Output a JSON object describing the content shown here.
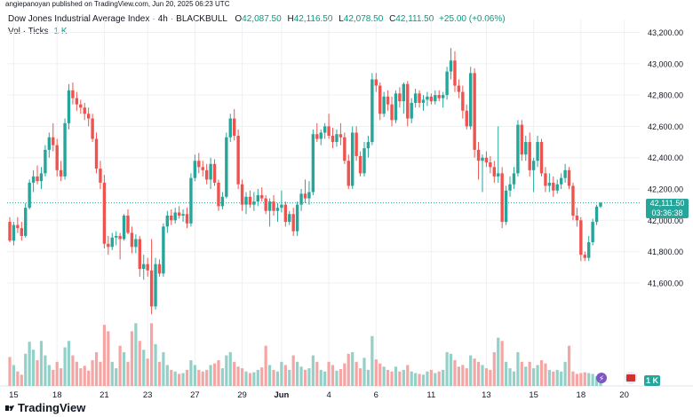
{
  "publisher_line": "angiepanoyan published on TradingView.com, Jun 20, 2025 06:23 UTC",
  "legend": {
    "symbol": "Dow Jones Industrial Average Index",
    "interval": "4h",
    "source": "BLACKBULL",
    "o_label": "O",
    "o_value": "42,087.50",
    "h_label": "H",
    "h_value": "42,116.50",
    "l_label": "L",
    "l_value": "42,078.50",
    "c_label": "C",
    "c_value": "42,111.50",
    "change": "+25.00 (+0.06%)",
    "vol_label": "Vol · Ticks",
    "vol_value": "1 K"
  },
  "last_price_tag": {
    "price": "42,111.50",
    "countdown": "03:36:38"
  },
  "volume_tag": "1 K",
  "brand": "TradingView",
  "colors": {
    "up": "#26a69a",
    "down": "#ef5350",
    "up_vol": "#93d0c8",
    "down_vol": "#f5a6a4",
    "grid": "#eef0f3",
    "axis_text": "#131722",
    "last_line": "#26a69a"
  },
  "chart_data": {
    "type": "candlestick",
    "y_axis": {
      "min": 41500,
      "max": 43300,
      "ticks": [
        41600,
        41800,
        42000,
        42200,
        42400,
        42600,
        42800,
        43000,
        43200
      ],
      "tick_labels": [
        "41,600.00",
        "41,800.00",
        "42,000.00",
        "42,200.00",
        "42,400.00",
        "42,600.00",
        "42,800.00",
        "43,000.00",
        "43,200.00"
      ]
    },
    "x_axis": {
      "labels": [
        "15",
        "18",
        "21",
        "23",
        "27",
        "29",
        "Jun",
        "4",
        "6",
        "11",
        "13",
        "15",
        "18",
        "20"
      ],
      "label_candle_index": [
        1,
        12,
        24,
        35,
        47,
        59,
        69,
        81,
        93,
        107,
        121,
        133,
        145,
        156
      ]
    },
    "last_price": 42111.5,
    "volume_scale_max": 1600,
    "candles": [
      {
        "o": 41990,
        "h": 42020,
        "l": 41860,
        "c": 41870,
        "v": 360
      },
      {
        "o": 41870,
        "h": 41990,
        "l": 41840,
        "c": 41970,
        "v": 260
      },
      {
        "o": 41970,
        "h": 42020,
        "l": 41920,
        "c": 41950,
        "v": 180
      },
      {
        "o": 41950,
        "h": 41990,
        "l": 41870,
        "c": 41900,
        "v": 140
      },
      {
        "o": 41900,
        "h": 42110,
        "l": 41890,
        "c": 42080,
        "v": 400
      },
      {
        "o": 42080,
        "h": 42260,
        "l": 42070,
        "c": 42240,
        "v": 550
      },
      {
        "o": 42240,
        "h": 42320,
        "l": 42180,
        "c": 42280,
        "v": 450
      },
      {
        "o": 42280,
        "h": 42350,
        "l": 42230,
        "c": 42250,
        "v": 320
      },
      {
        "o": 42250,
        "h": 42340,
        "l": 42200,
        "c": 42300,
        "v": 560
      },
      {
        "o": 42300,
        "h": 42480,
        "l": 42280,
        "c": 42450,
        "v": 380
      },
      {
        "o": 42450,
        "h": 42560,
        "l": 42400,
        "c": 42530,
        "v": 260
      },
      {
        "o": 42530,
        "h": 42620,
        "l": 42440,
        "c": 42480,
        "v": 200
      },
      {
        "o": 42480,
        "h": 42520,
        "l": 42280,
        "c": 42320,
        "v": 300
      },
      {
        "o": 42320,
        "h": 42380,
        "l": 42250,
        "c": 42280,
        "v": 220
      },
      {
        "o": 42280,
        "h": 42650,
        "l": 42260,
        "c": 42620,
        "v": 480
      },
      {
        "o": 42620,
        "h": 42870,
        "l": 42580,
        "c": 42830,
        "v": 560
      },
      {
        "o": 42830,
        "h": 42880,
        "l": 42740,
        "c": 42780,
        "v": 380
      },
      {
        "o": 42780,
        "h": 42820,
        "l": 42700,
        "c": 42740,
        "v": 300
      },
      {
        "o": 42740,
        "h": 42770,
        "l": 42680,
        "c": 42720,
        "v": 220
      },
      {
        "o": 42720,
        "h": 42750,
        "l": 42640,
        "c": 42680,
        "v": 250
      },
      {
        "o": 42680,
        "h": 42720,
        "l": 42600,
        "c": 42650,
        "v": 190
      },
      {
        "o": 42650,
        "h": 42680,
        "l": 42500,
        "c": 42520,
        "v": 320
      },
      {
        "o": 42520,
        "h": 42560,
        "l": 42300,
        "c": 42330,
        "v": 420
      },
      {
        "o": 42330,
        "h": 42380,
        "l": 42200,
        "c": 42240,
        "v": 300
      },
      {
        "o": 42240,
        "h": 42290,
        "l": 41820,
        "c": 41850,
        "v": 760
      },
      {
        "o": 41850,
        "h": 41900,
        "l": 41780,
        "c": 41830,
        "v": 680
      },
      {
        "o": 41830,
        "h": 41920,
        "l": 41810,
        "c": 41890,
        "v": 300
      },
      {
        "o": 41890,
        "h": 41930,
        "l": 41840,
        "c": 41900,
        "v": 220
      },
      {
        "o": 41900,
        "h": 41920,
        "l": 41750,
        "c": 41880,
        "v": 500
      },
      {
        "o": 41880,
        "h": 42040,
        "l": 41870,
        "c": 42030,
        "v": 420
      },
      {
        "o": 42030,
        "h": 42070,
        "l": 41910,
        "c": 41920,
        "v": 300
      },
      {
        "o": 41920,
        "h": 41960,
        "l": 41790,
        "c": 41830,
        "v": 680
      },
      {
        "o": 41830,
        "h": 41910,
        "l": 41790,
        "c": 41880,
        "v": 780
      },
      {
        "o": 41880,
        "h": 41900,
        "l": 41640,
        "c": 41690,
        "v": 560
      },
      {
        "o": 41690,
        "h": 41780,
        "l": 41620,
        "c": 41720,
        "v": 450
      },
      {
        "o": 41720,
        "h": 41760,
        "l": 41640,
        "c": 41680,
        "v": 340
      },
      {
        "o": 41680,
        "h": 41880,
        "l": 41400,
        "c": 41450,
        "v": 780
      },
      {
        "o": 41450,
        "h": 41760,
        "l": 41430,
        "c": 41720,
        "v": 520
      },
      {
        "o": 41720,
        "h": 41750,
        "l": 41640,
        "c": 41660,
        "v": 300
      },
      {
        "o": 41660,
        "h": 41980,
        "l": 41640,
        "c": 41960,
        "v": 420
      },
      {
        "o": 41960,
        "h": 42060,
        "l": 41920,
        "c": 42030,
        "v": 260
      },
      {
        "o": 42030,
        "h": 42070,
        "l": 41970,
        "c": 42000,
        "v": 200
      },
      {
        "o": 42000,
        "h": 42080,
        "l": 41980,
        "c": 42050,
        "v": 180
      },
      {
        "o": 42050,
        "h": 42090,
        "l": 42010,
        "c": 42030,
        "v": 150
      },
      {
        "o": 42030,
        "h": 42070,
        "l": 41990,
        "c": 42040,
        "v": 160
      },
      {
        "o": 42040,
        "h": 42080,
        "l": 41950,
        "c": 41980,
        "v": 200
      },
      {
        "o": 41980,
        "h": 42300,
        "l": 41960,
        "c": 42270,
        "v": 320
      },
      {
        "o": 42270,
        "h": 42420,
        "l": 42250,
        "c": 42380,
        "v": 260
      },
      {
        "o": 42380,
        "h": 42430,
        "l": 42300,
        "c": 42340,
        "v": 200
      },
      {
        "o": 42340,
        "h": 42380,
        "l": 42280,
        "c": 42320,
        "v": 180
      },
      {
        "o": 42320,
        "h": 42360,
        "l": 42230,
        "c": 42260,
        "v": 200
      },
      {
        "o": 42260,
        "h": 42400,
        "l": 42200,
        "c": 42360,
        "v": 260
      },
      {
        "o": 42360,
        "h": 42390,
        "l": 42220,
        "c": 42240,
        "v": 280
      },
      {
        "o": 42240,
        "h": 42260,
        "l": 42060,
        "c": 42090,
        "v": 320
      },
      {
        "o": 42090,
        "h": 42180,
        "l": 42070,
        "c": 42150,
        "v": 220
      },
      {
        "o": 42150,
        "h": 42560,
        "l": 42140,
        "c": 42530,
        "v": 380
      },
      {
        "o": 42530,
        "h": 42680,
        "l": 42500,
        "c": 42650,
        "v": 420
      },
      {
        "o": 42650,
        "h": 42710,
        "l": 42510,
        "c": 42540,
        "v": 300
      },
      {
        "o": 42540,
        "h": 42580,
        "l": 42200,
        "c": 42230,
        "v": 240
      },
      {
        "o": 42230,
        "h": 42260,
        "l": 42060,
        "c": 42100,
        "v": 220
      },
      {
        "o": 42100,
        "h": 42180,
        "l": 42040,
        "c": 42150,
        "v": 180
      },
      {
        "o": 42150,
        "h": 42190,
        "l": 42080,
        "c": 42100,
        "v": 160
      },
      {
        "o": 42100,
        "h": 42180,
        "l": 42060,
        "c": 42120,
        "v": 170
      },
      {
        "o": 42120,
        "h": 42200,
        "l": 42090,
        "c": 42160,
        "v": 200
      },
      {
        "o": 42160,
        "h": 42210,
        "l": 42120,
        "c": 42140,
        "v": 230
      },
      {
        "o": 42140,
        "h": 42160,
        "l": 42040,
        "c": 42060,
        "v": 500
      },
      {
        "o": 42060,
        "h": 42140,
        "l": 41960,
        "c": 42120,
        "v": 260
      },
      {
        "o": 42120,
        "h": 42160,
        "l": 42030,
        "c": 42060,
        "v": 200
      },
      {
        "o": 42060,
        "h": 42110,
        "l": 41990,
        "c": 42080,
        "v": 180
      },
      {
        "o": 42080,
        "h": 42190,
        "l": 42050,
        "c": 42100,
        "v": 300
      },
      {
        "o": 42100,
        "h": 42120,
        "l": 41960,
        "c": 41990,
        "v": 260
      },
      {
        "o": 41990,
        "h": 42060,
        "l": 41970,
        "c": 42040,
        "v": 200
      },
      {
        "o": 42040,
        "h": 42080,
        "l": 41900,
        "c": 41930,
        "v": 380
      },
      {
        "o": 41930,
        "h": 42120,
        "l": 41900,
        "c": 42100,
        "v": 300
      },
      {
        "o": 42100,
        "h": 42200,
        "l": 42060,
        "c": 42170,
        "v": 240
      },
      {
        "o": 42170,
        "h": 42260,
        "l": 42110,
        "c": 42140,
        "v": 200
      },
      {
        "o": 42140,
        "h": 42250,
        "l": 42100,
        "c": 42180,
        "v": 220
      },
      {
        "o": 42180,
        "h": 42580,
        "l": 42160,
        "c": 42550,
        "v": 380
      },
      {
        "o": 42550,
        "h": 42620,
        "l": 42500,
        "c": 42520,
        "v": 300
      },
      {
        "o": 42520,
        "h": 42580,
        "l": 42480,
        "c": 42560,
        "v": 200
      },
      {
        "o": 42560,
        "h": 42620,
        "l": 42520,
        "c": 42600,
        "v": 180
      },
      {
        "o": 42600,
        "h": 42680,
        "l": 42520,
        "c": 42540,
        "v": 300
      },
      {
        "o": 42540,
        "h": 42590,
        "l": 42460,
        "c": 42500,
        "v": 260
      },
      {
        "o": 42500,
        "h": 42580,
        "l": 42470,
        "c": 42550,
        "v": 190
      },
      {
        "o": 42550,
        "h": 42620,
        "l": 42480,
        "c": 42530,
        "v": 210
      },
      {
        "o": 42530,
        "h": 42560,
        "l": 42360,
        "c": 42380,
        "v": 280
      },
      {
        "o": 42380,
        "h": 42420,
        "l": 42200,
        "c": 42220,
        "v": 400
      },
      {
        "o": 42220,
        "h": 42600,
        "l": 42200,
        "c": 42560,
        "v": 420
      },
      {
        "o": 42560,
        "h": 42600,
        "l": 42380,
        "c": 42410,
        "v": 300
      },
      {
        "o": 42410,
        "h": 42440,
        "l": 42280,
        "c": 42300,
        "v": 220
      },
      {
        "o": 42300,
        "h": 42500,
        "l": 42280,
        "c": 42460,
        "v": 350
      },
      {
        "o": 42460,
        "h": 42540,
        "l": 42400,
        "c": 42500,
        "v": 200
      },
      {
        "o": 42500,
        "h": 42940,
        "l": 42480,
        "c": 42900,
        "v": 620
      },
      {
        "o": 42900,
        "h": 42940,
        "l": 42820,
        "c": 42860,
        "v": 330
      },
      {
        "o": 42860,
        "h": 42880,
        "l": 42640,
        "c": 42680,
        "v": 280
      },
      {
        "o": 42680,
        "h": 42820,
        "l": 42660,
        "c": 42790,
        "v": 240
      },
      {
        "o": 42790,
        "h": 42830,
        "l": 42700,
        "c": 42740,
        "v": 200
      },
      {
        "o": 42740,
        "h": 42790,
        "l": 42600,
        "c": 42640,
        "v": 180
      },
      {
        "o": 42640,
        "h": 42830,
        "l": 42620,
        "c": 42810,
        "v": 240
      },
      {
        "o": 42810,
        "h": 42850,
        "l": 42720,
        "c": 42760,
        "v": 180
      },
      {
        "o": 42760,
        "h": 42880,
        "l": 42680,
        "c": 42870,
        "v": 200
      },
      {
        "o": 42870,
        "h": 42890,
        "l": 42600,
        "c": 42650,
        "v": 260
      },
      {
        "o": 42650,
        "h": 42780,
        "l": 42620,
        "c": 42750,
        "v": 180
      },
      {
        "o": 42750,
        "h": 42840,
        "l": 42720,
        "c": 42810,
        "v": 160
      },
      {
        "o": 42810,
        "h": 42830,
        "l": 42720,
        "c": 42750,
        "v": 150
      },
      {
        "o": 42750,
        "h": 42800,
        "l": 42700,
        "c": 42770,
        "v": 140
      },
      {
        "o": 42770,
        "h": 42820,
        "l": 42730,
        "c": 42790,
        "v": 180
      },
      {
        "o": 42790,
        "h": 42810,
        "l": 42740,
        "c": 42760,
        "v": 200
      },
      {
        "o": 42760,
        "h": 42830,
        "l": 42740,
        "c": 42800,
        "v": 160
      },
      {
        "o": 42800,
        "h": 42830,
        "l": 42760,
        "c": 42780,
        "v": 180
      },
      {
        "o": 42780,
        "h": 42820,
        "l": 42720,
        "c": 42800,
        "v": 200
      },
      {
        "o": 42800,
        "h": 42980,
        "l": 42770,
        "c": 42950,
        "v": 420
      },
      {
        "o": 42950,
        "h": 43100,
        "l": 42900,
        "c": 43020,
        "v": 400
      },
      {
        "o": 43020,
        "h": 43080,
        "l": 42820,
        "c": 42860,
        "v": 320
      },
      {
        "o": 42860,
        "h": 42900,
        "l": 42780,
        "c": 42820,
        "v": 240
      },
      {
        "o": 42820,
        "h": 42860,
        "l": 42650,
        "c": 42700,
        "v": 260
      },
      {
        "o": 42700,
        "h": 42740,
        "l": 42580,
        "c": 42600,
        "v": 220
      },
      {
        "o": 42600,
        "h": 42980,
        "l": 42580,
        "c": 42940,
        "v": 380
      },
      {
        "o": 42940,
        "h": 42970,
        "l": 42400,
        "c": 42450,
        "v": 340
      },
      {
        "o": 42450,
        "h": 42500,
        "l": 42260,
        "c": 42380,
        "v": 300
      },
      {
        "o": 42380,
        "h": 42420,
        "l": 42180,
        "c": 42400,
        "v": 260
      },
      {
        "o": 42400,
        "h": 42440,
        "l": 42340,
        "c": 42370,
        "v": 220
      },
      {
        "o": 42370,
        "h": 42410,
        "l": 42300,
        "c": 42340,
        "v": 200
      },
      {
        "o": 42340,
        "h": 42380,
        "l": 42240,
        "c": 42280,
        "v": 420
      },
      {
        "o": 42280,
        "h": 42600,
        "l": 42240,
        "c": 42300,
        "v": 600
      },
      {
        "o": 42300,
        "h": 42340,
        "l": 41950,
        "c": 41990,
        "v": 560
      },
      {
        "o": 41990,
        "h": 42220,
        "l": 41970,
        "c": 42190,
        "v": 300
      },
      {
        "o": 42190,
        "h": 42280,
        "l": 42150,
        "c": 42230,
        "v": 220
      },
      {
        "o": 42230,
        "h": 42340,
        "l": 42200,
        "c": 42300,
        "v": 180
      },
      {
        "o": 42300,
        "h": 42640,
        "l": 42280,
        "c": 42610,
        "v": 420
      },
      {
        "o": 42610,
        "h": 42640,
        "l": 42380,
        "c": 42420,
        "v": 300
      },
      {
        "o": 42420,
        "h": 42540,
        "l": 42380,
        "c": 42500,
        "v": 240
      },
      {
        "o": 42500,
        "h": 42560,
        "l": 42280,
        "c": 42320,
        "v": 300
      },
      {
        "o": 42320,
        "h": 42400,
        "l": 42180,
        "c": 42380,
        "v": 220
      },
      {
        "o": 42380,
        "h": 42540,
        "l": 42340,
        "c": 42500,
        "v": 260
      },
      {
        "o": 42500,
        "h": 42520,
        "l": 42280,
        "c": 42300,
        "v": 320
      },
      {
        "o": 42300,
        "h": 42340,
        "l": 42180,
        "c": 42220,
        "v": 280
      },
      {
        "o": 42220,
        "h": 42300,
        "l": 42180,
        "c": 42240,
        "v": 200
      },
      {
        "o": 42240,
        "h": 42280,
        "l": 42150,
        "c": 42190,
        "v": 180
      },
      {
        "o": 42190,
        "h": 42260,
        "l": 42170,
        "c": 42230,
        "v": 200
      },
      {
        "o": 42230,
        "h": 42300,
        "l": 42200,
        "c": 42270,
        "v": 180
      },
      {
        "o": 42270,
        "h": 42360,
        "l": 42240,
        "c": 42320,
        "v": 300
      },
      {
        "o": 42320,
        "h": 42340,
        "l": 42200,
        "c": 42220,
        "v": 500
      },
      {
        "o": 42220,
        "h": 42240,
        "l": 42000,
        "c": 42030,
        "v": 180
      },
      {
        "o": 42030,
        "h": 42080,
        "l": 41960,
        "c": 42000,
        "v": 150
      },
      {
        "o": 42000,
        "h": 42020,
        "l": 41740,
        "c": 41780,
        "v": 160
      },
      {
        "o": 41780,
        "h": 41800,
        "l": 41740,
        "c": 41760,
        "v": 170
      },
      {
        "o": 41760,
        "h": 41900,
        "l": 41740,
        "c": 41860,
        "v": 160
      },
      {
        "o": 41860,
        "h": 42010,
        "l": 41840,
        "c": 41990,
        "v": 150
      },
      {
        "o": 41990,
        "h": 42100,
        "l": 41970,
        "c": 42087.5,
        "v": 120
      },
      {
        "o": 42087.5,
        "h": 42116.5,
        "l": 42078.5,
        "c": 42111.5,
        "v": 60
      }
    ]
  }
}
